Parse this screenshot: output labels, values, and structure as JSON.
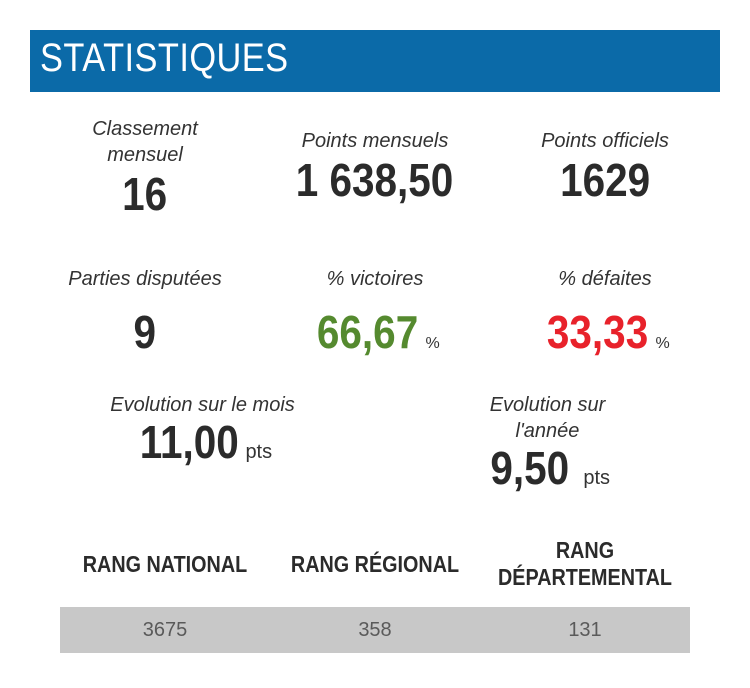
{
  "header": {
    "title": "STATISTIQUES"
  },
  "stats": {
    "classement_mensuel": {
      "label": "Classement mensuel",
      "value": "16"
    },
    "points_mensuels": {
      "label": "Points mensuels",
      "value": "1 638,50"
    },
    "points_officiels": {
      "label": "Points officiels",
      "value": "1629"
    },
    "parties_disputees": {
      "label": "Parties disputées",
      "value": "9"
    },
    "victoires": {
      "label": "% victoires",
      "value": "66,67",
      "unit": "%",
      "color": "#558a2f"
    },
    "defaites": {
      "label": "% défaites",
      "value": "33,33",
      "unit": "%",
      "color": "#e8222b"
    },
    "evolution_mois": {
      "label": "Evolution sur le mois",
      "value": "11,00",
      "unit": "pts"
    },
    "evolution_annee": {
      "label": "Evolution sur l'année",
      "value": "9,50",
      "unit": "pts"
    }
  },
  "ranks": {
    "national": {
      "label": "RANG NATIONAL",
      "value": "3675"
    },
    "regional": {
      "label": "RANG RÉGIONAL",
      "value": "358"
    },
    "departemental": {
      "label": "RANG DÉPARTEMENTAL",
      "value": "131"
    }
  }
}
